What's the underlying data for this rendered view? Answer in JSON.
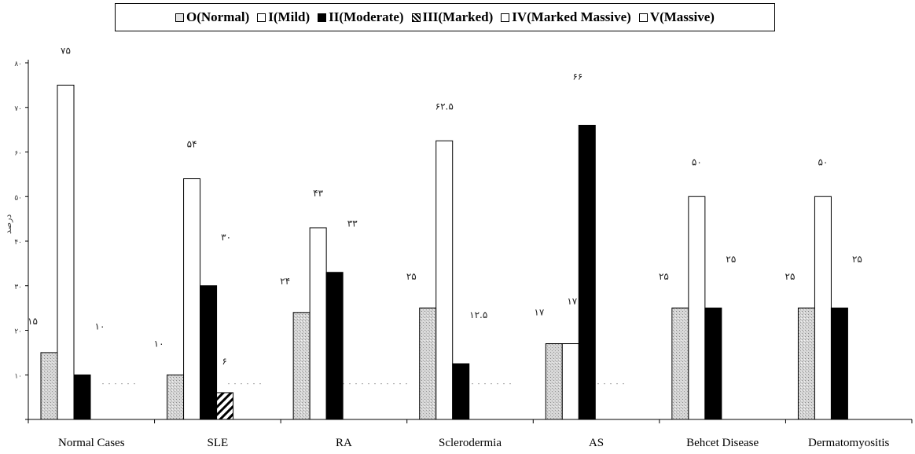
{
  "legend": {
    "items": [
      {
        "label": "O(Normal)",
        "key": "normal"
      },
      {
        "label": "I(Mild)",
        "key": "mild"
      },
      {
        "label": "II(Moderate)",
        "key": "moderate"
      },
      {
        "label": "III(Marked)",
        "key": "marked"
      },
      {
        "label": "IV(Marked Massive)",
        "key": "marked_massive"
      },
      {
        "label": "V(Massive)",
        "key": "massive"
      }
    ]
  },
  "chart_data": {
    "type": "bar",
    "title": "",
    "xlabel": "",
    "ylabel": "درصد",
    "ylim": [
      0,
      80
    ],
    "yticks": [
      0,
      10,
      20,
      30,
      40,
      50,
      60,
      70,
      80
    ],
    "ytick_labels": [
      "",
      "۱۰",
      "۲۰",
      "۳۰",
      "۴۰",
      "۵۰",
      "۶۰",
      "۷۰",
      "۸۰"
    ],
    "grid": false,
    "legend_position": "top",
    "categories": [
      "Normal Cases",
      "SLE",
      "RA",
      "Sclerodermia",
      "AS",
      "Behcet Disease",
      "Dermatomyositis"
    ],
    "series": [
      {
        "name": "O(Normal)",
        "values": [
          15,
          10,
          24,
          25,
          17,
          25,
          25
        ],
        "labels": [
          "۱۵",
          "۱۰",
          "۲۴",
          "۲۵",
          "۱۷",
          "۲۵",
          "۲۵"
        ]
      },
      {
        "name": "I(Mild)",
        "values": [
          75,
          54,
          43,
          62.5,
          17,
          50,
          50
        ],
        "labels": [
          "۷۵",
          "۵۴",
          "۴۳",
          "۶۲.۵",
          "۱۷",
          "۵۰",
          "۵۰"
        ]
      },
      {
        "name": "II(Moderate)",
        "values": [
          10,
          30,
          33,
          12.5,
          66,
          25,
          25
        ],
        "labels": [
          "۱۰",
          "۳۰",
          "۳۳",
          "۱۲.۵",
          "۶۶",
          "۲۵",
          "۲۵"
        ]
      },
      {
        "name": "III(Marked)",
        "values": [
          0,
          6,
          0,
          0,
          0,
          0,
          0
        ],
        "labels": [
          "",
          "۶",
          "",
          "",
          "",
          "",
          ""
        ]
      },
      {
        "name": "IV(Marked Massive)",
        "values": [
          0,
          0,
          0,
          0,
          0,
          0,
          0
        ],
        "labels": [
          "",
          "",
          "",
          "",
          "",
          "",
          ""
        ]
      },
      {
        "name": "V(Massive)",
        "values": [
          0,
          0,
          0,
          0,
          0,
          0,
          0
        ],
        "labels": [
          "",
          "",
          "",
          "",
          "",
          "",
          ""
        ]
      }
    ]
  }
}
